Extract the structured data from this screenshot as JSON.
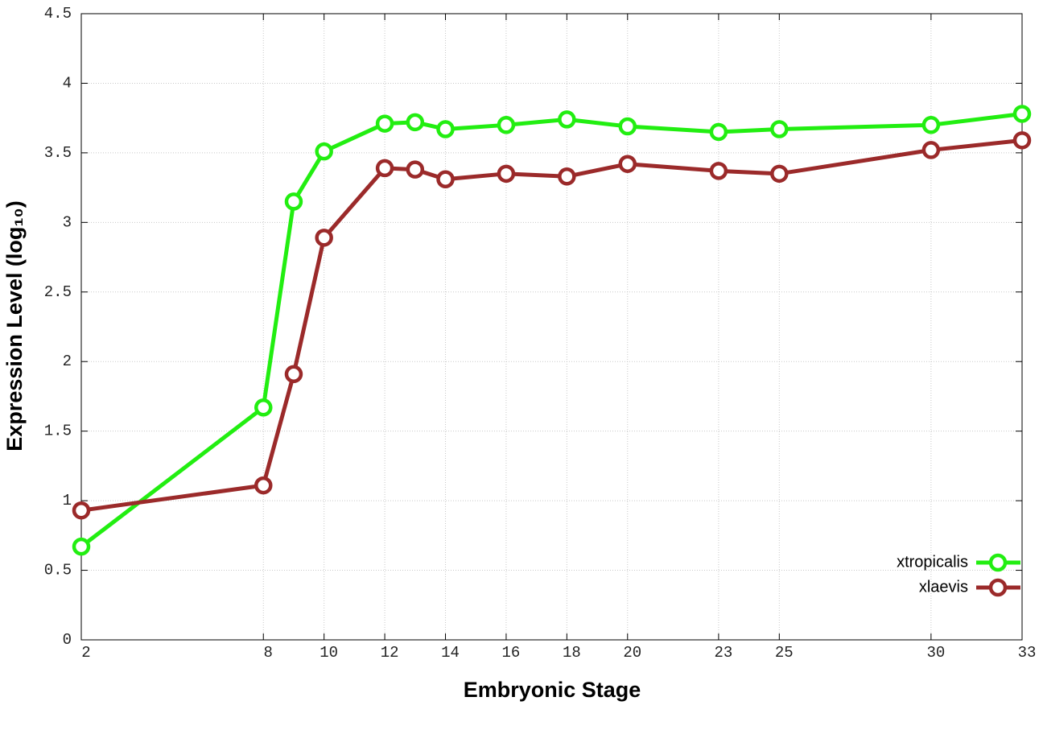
{
  "chart_data": {
    "type": "line",
    "x_label": "Embryonic Stage",
    "y_label": "Expression Level (log₁₀)",
    "x": [
      2,
      8,
      9,
      10,
      12,
      13,
      14,
      16,
      18,
      20,
      23,
      25,
      30,
      33
    ],
    "series": [
      {
        "name": "xtropicalis",
        "color": "#22ee11",
        "values": [
          0.67,
          1.67,
          3.15,
          3.51,
          3.71,
          3.72,
          3.67,
          3.7,
          3.74,
          3.69,
          3.65,
          3.67,
          3.7,
          3.78
        ]
      },
      {
        "name": "xlaevis",
        "color": "#9b2a2a",
        "values": [
          0.93,
          1.11,
          1.91,
          2.89,
          3.39,
          3.38,
          3.31,
          3.35,
          3.33,
          3.42,
          3.37,
          3.35,
          3.52,
          3.59
        ]
      }
    ],
    "xlim": [
      2,
      33
    ],
    "xticks": [
      2,
      8,
      10,
      12,
      14,
      16,
      18,
      20,
      23,
      25,
      30,
      33
    ],
    "ylim": [
      0,
      4.5
    ],
    "yticks": [
      0,
      0.5,
      1,
      1.5,
      2,
      2.5,
      3,
      3.5,
      4,
      4.5
    ],
    "grid": true,
    "legend": "lower right"
  }
}
